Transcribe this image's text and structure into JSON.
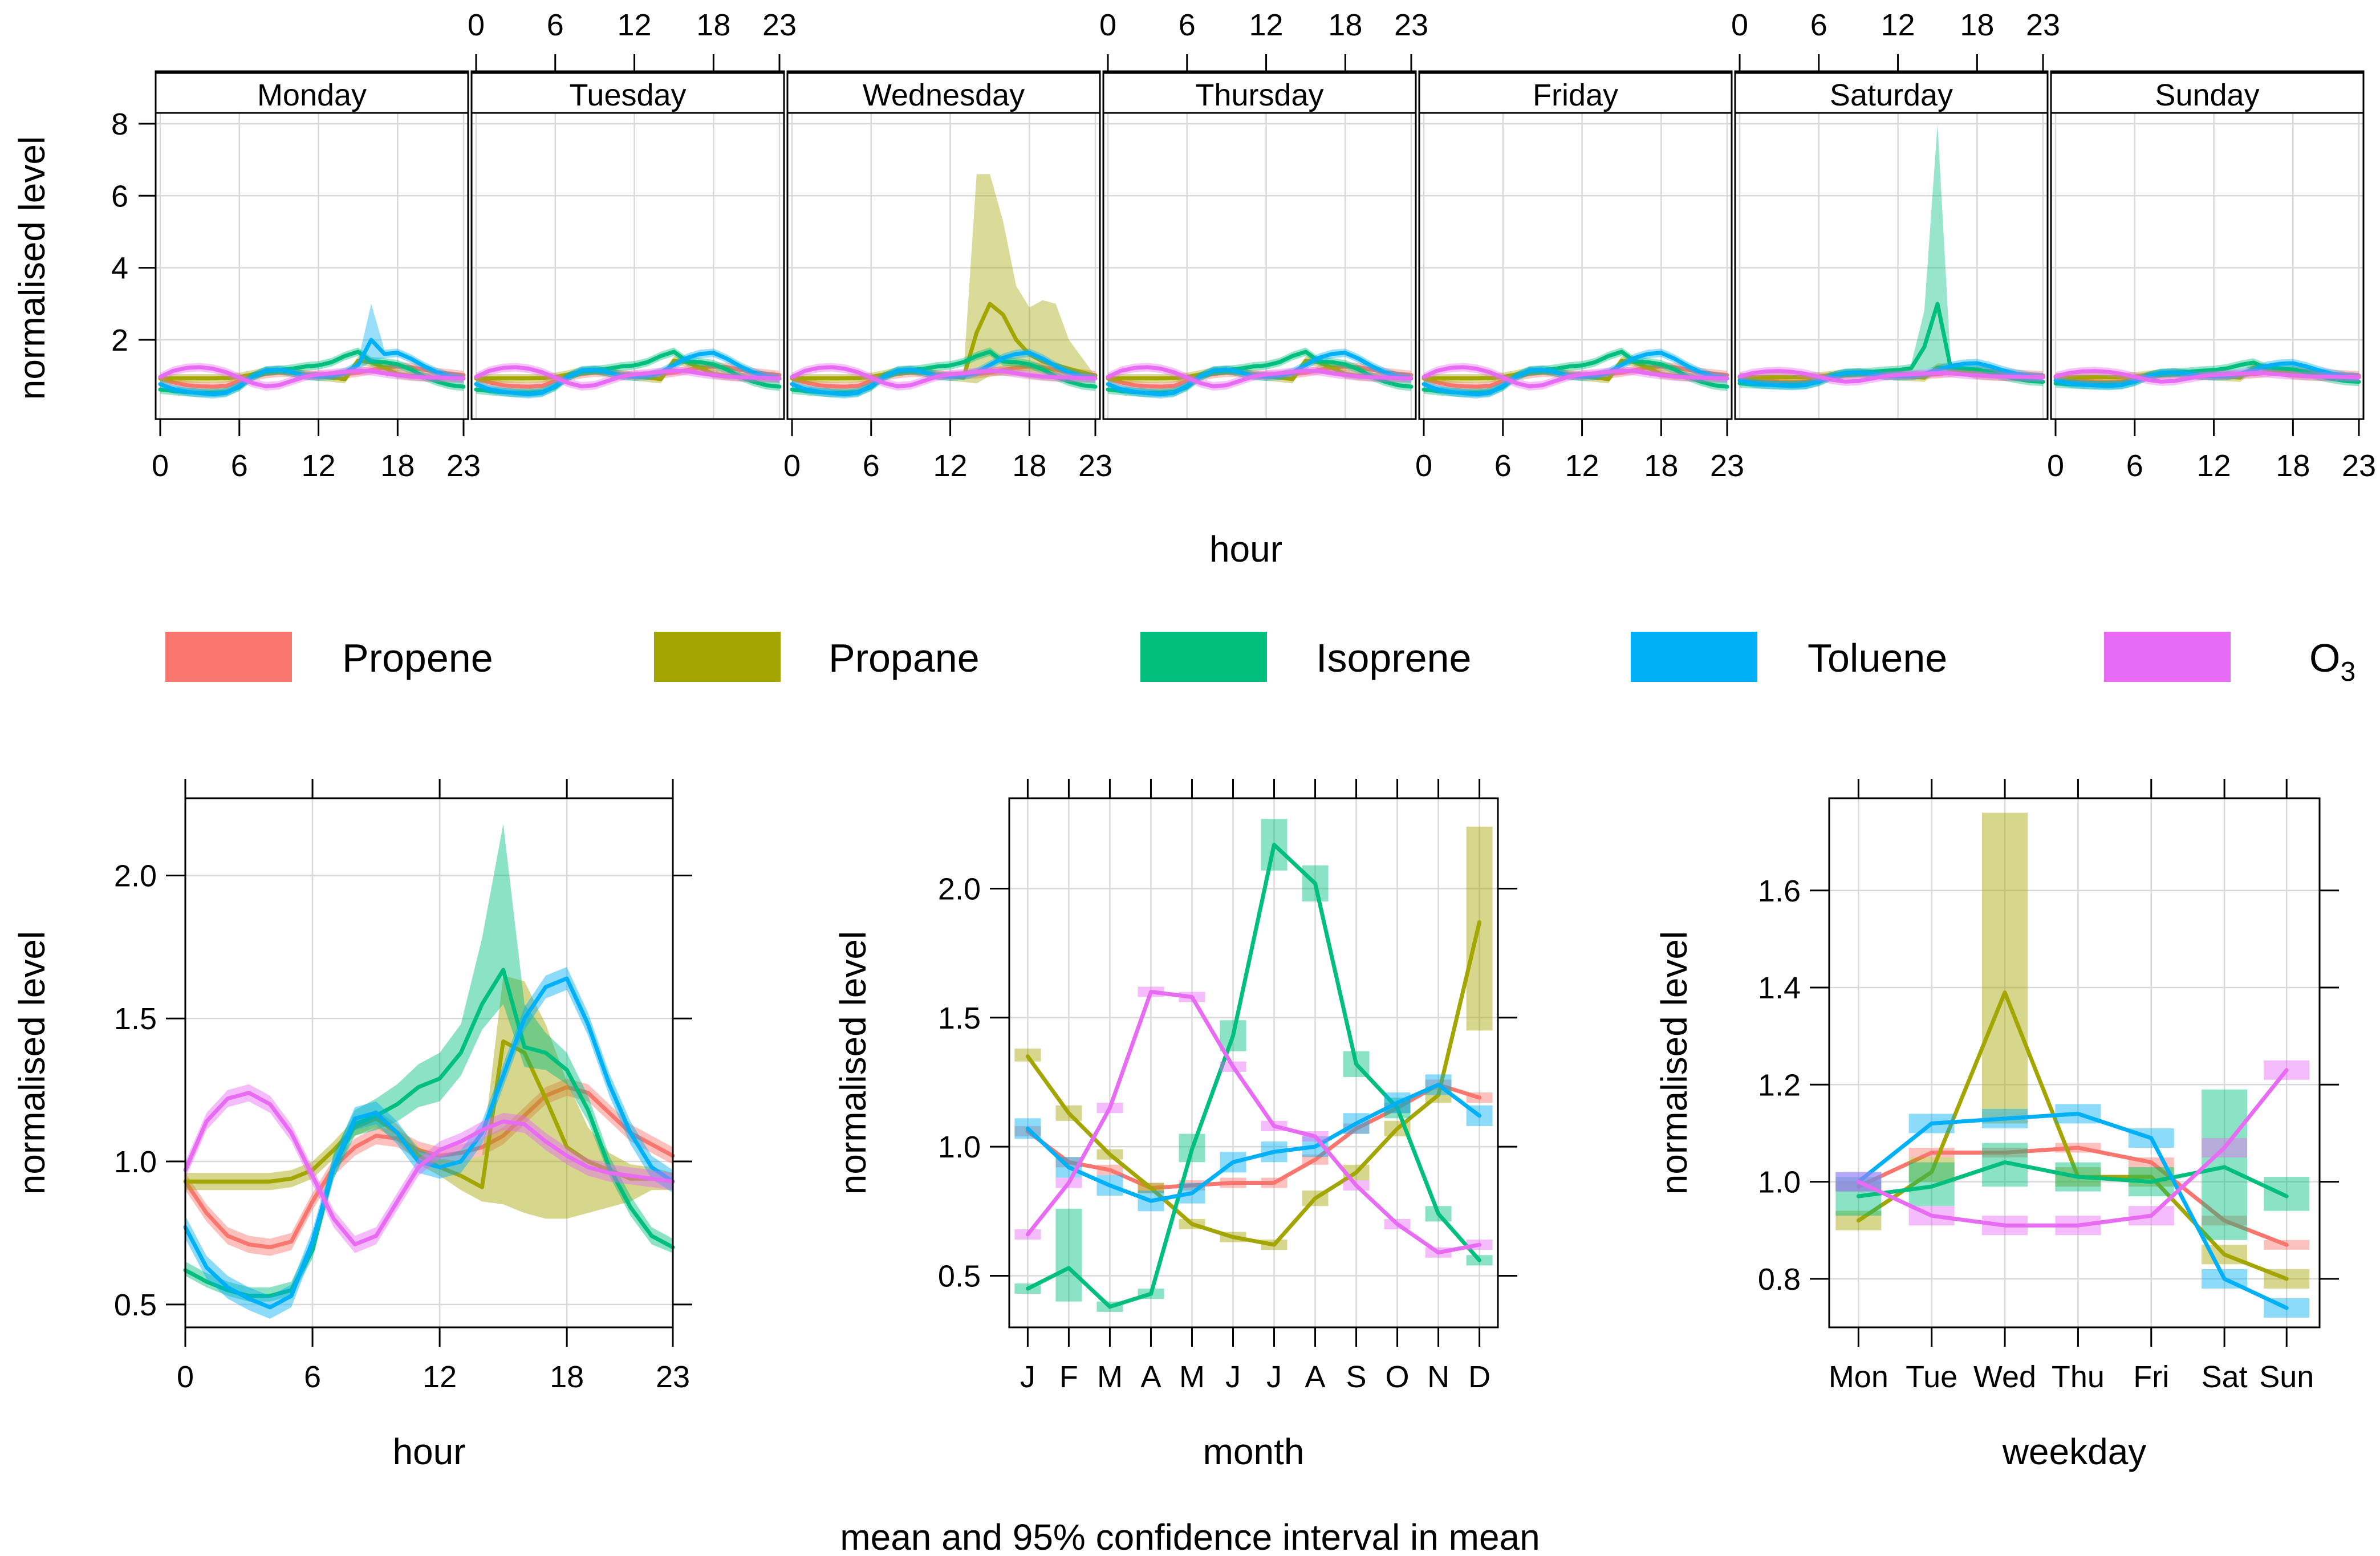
{
  "chart_data": [
    {
      "id": "weekday_hour",
      "type": "line",
      "xlabel": "hour",
      "ylabel": "normalised level",
      "xticks": [
        0,
        6,
        12,
        18,
        23
      ],
      "yticks": [
        2,
        4,
        6,
        8
      ],
      "xlim": [
        0,
        23
      ],
      "ylim": [
        -0.2,
        8.3
      ],
      "panels": [
        "Monday",
        "Tuesday",
        "Wednesday",
        "Thursday",
        "Friday",
        "Saturday",
        "Sunday"
      ],
      "spike_series": {
        "Wednesday": {
          "series": "Propane",
          "hour_range": [
            14,
            23
          ],
          "ci_upper": [
            6.6,
            6.6,
            5.3,
            3.5,
            2.9,
            3.1,
            3.0,
            2.0,
            1.5,
            1.0
          ],
          "mean": [
            2.2,
            3.0,
            2.7,
            2.0,
            1.6,
            1.4,
            1.3,
            1.2,
            1.1,
            1.0
          ]
        },
        "Saturday": {
          "series": "Isoprene",
          "peak_hour": 15,
          "ci_upper": 8.0,
          "mean": 3.0
        },
        "Monday": {
          "series": "Toluene",
          "peak_hour": 16,
          "ci_upper": 3.0,
          "mean": 2.0
        }
      }
    },
    {
      "id": "hour",
      "type": "line",
      "xlabel": "hour",
      "ylabel": "normalised level",
      "xticks": [
        0,
        6,
        12,
        18,
        23
      ],
      "yticks": [
        0.5,
        1.0,
        1.5,
        2.0
      ],
      "ytick_labels": [
        "0.5",
        "1.0",
        "1.5",
        "2.0"
      ],
      "xlim": [
        0,
        23
      ],
      "ylim": [
        0.42,
        2.27
      ],
      "x": [
        0,
        1,
        2,
        3,
        4,
        5,
        6,
        7,
        8,
        9,
        10,
        11,
        12,
        13,
        14,
        15,
        16,
        17,
        18,
        19,
        20,
        21,
        22,
        23
      ],
      "series": [
        {
          "name": "Propene",
          "values": [
            0.93,
            0.82,
            0.74,
            0.71,
            0.7,
            0.72,
            0.86,
            0.98,
            1.05,
            1.09,
            1.08,
            1.04,
            1.02,
            1.03,
            1.05,
            1.09,
            1.16,
            1.23,
            1.26,
            1.24,
            1.17,
            1.1,
            1.06,
            1.02
          ],
          "ci": 0.03
        },
        {
          "name": "Propane",
          "values": [
            0.93,
            0.93,
            0.93,
            0.93,
            0.93,
            0.94,
            0.97,
            1.04,
            1.12,
            1.15,
            1.1,
            1.02,
            0.98,
            0.95,
            0.91,
            1.42,
            1.38,
            1.22,
            1.05,
            1.0,
            0.97,
            0.94,
            0.94,
            0.93
          ],
          "ci_lower": [
            0.9,
            0.9,
            0.9,
            0.9,
            0.9,
            0.91,
            0.94,
            1.01,
            1.09,
            1.12,
            1.07,
            0.99,
            0.95,
            0.9,
            0.86,
            0.85,
            0.82,
            0.8,
            0.8,
            0.82,
            0.84,
            0.86,
            0.9,
            0.9
          ],
          "ci_upper": [
            0.96,
            0.96,
            0.96,
            0.96,
            0.96,
            0.97,
            1.0,
            1.07,
            1.15,
            1.18,
            1.13,
            1.05,
            1.01,
            1.0,
            1.02,
            1.65,
            1.63,
            1.48,
            1.28,
            1.12,
            1.03,
            0.99,
            0.98,
            0.96
          ]
        },
        {
          "name": "Isoprene",
          "values": [
            0.62,
            0.58,
            0.55,
            0.53,
            0.53,
            0.55,
            0.69,
            0.98,
            1.13,
            1.16,
            1.2,
            1.26,
            1.29,
            1.38,
            1.55,
            1.67,
            1.4,
            1.38,
            1.32,
            1.18,
            0.98,
            0.84,
            0.74,
            0.7
          ],
          "ci_lower": [
            0.6,
            0.56,
            0.53,
            0.51,
            0.51,
            0.53,
            0.66,
            0.94,
            1.09,
            1.11,
            1.14,
            1.19,
            1.21,
            1.3,
            1.46,
            1.55,
            1.33,
            1.32,
            1.27,
            1.14,
            0.95,
            0.81,
            0.71,
            0.68
          ],
          "ci_upper": [
            0.65,
            0.61,
            0.58,
            0.56,
            0.56,
            0.58,
            0.73,
            1.03,
            1.18,
            1.22,
            1.27,
            1.34,
            1.38,
            1.48,
            1.78,
            2.18,
            1.55,
            1.45,
            1.38,
            1.23,
            1.02,
            0.88,
            0.77,
            0.73
          ]
        },
        {
          "name": "Toluene",
          "values": [
            0.77,
            0.63,
            0.56,
            0.52,
            0.49,
            0.53,
            0.72,
            0.98,
            1.15,
            1.17,
            1.1,
            1.0,
            0.98,
            1.0,
            1.1,
            1.3,
            1.5,
            1.61,
            1.64,
            1.48,
            1.27,
            1.1,
            0.98,
            0.93
          ],
          "ci": 0.04
        },
        {
          "name": "O3",
          "values": [
            0.97,
            1.14,
            1.22,
            1.24,
            1.2,
            1.1,
            0.95,
            0.8,
            0.71,
            0.74,
            0.86,
            0.98,
            1.04,
            1.07,
            1.11,
            1.14,
            1.13,
            1.07,
            1.02,
            0.98,
            0.96,
            0.95,
            0.94,
            0.93
          ],
          "ci": 0.03
        }
      ]
    },
    {
      "id": "month",
      "type": "line",
      "xlabel": "month",
      "ylabel": "normalised level",
      "categories": [
        "J",
        "F",
        "M",
        "A",
        "M",
        "J",
        "J",
        "A",
        "S",
        "O",
        "N",
        "D"
      ],
      "yticks": [
        0.5,
        1.0,
        1.5,
        2.0
      ],
      "ytick_labels": [
        "0.5",
        "1.0",
        "1.5",
        "2.0"
      ],
      "ylim": [
        0.3,
        2.35
      ],
      "series": [
        {
          "name": "Propene",
          "values": [
            1.06,
            0.94,
            0.91,
            0.84,
            0.85,
            0.86,
            0.86,
            0.95,
            1.07,
            1.15,
            1.24,
            1.19
          ],
          "ci": 0.02
        },
        {
          "name": "Propane",
          "values": [
            1.35,
            1.13,
            0.97,
            0.84,
            0.7,
            0.65,
            0.62,
            0.8,
            0.9,
            1.07,
            1.2,
            1.87
          ],
          "ci_lower": [
            1.33,
            1.1,
            0.95,
            0.82,
            0.68,
            0.63,
            0.6,
            0.77,
            0.87,
            1.04,
            1.17,
            1.45
          ],
          "ci_upper": [
            1.38,
            1.16,
            0.99,
            0.86,
            0.72,
            0.67,
            0.64,
            0.83,
            0.93,
            1.1,
            1.23,
            2.24
          ]
        },
        {
          "name": "Isoprene",
          "values": [
            0.45,
            0.53,
            0.38,
            0.43,
            0.99,
            1.43,
            2.17,
            2.02,
            1.32,
            1.15,
            0.74,
            0.56
          ],
          "ci_lower": [
            0.43,
            0.4,
            0.36,
            0.41,
            0.94,
            1.37,
            2.07,
            1.95,
            1.27,
            1.11,
            0.71,
            0.54
          ],
          "ci_upper": [
            0.47,
            0.76,
            0.4,
            0.45,
            1.05,
            1.49,
            2.27,
            2.09,
            1.37,
            1.19,
            0.77,
            0.58
          ]
        },
        {
          "name": "Toluene",
          "values": [
            1.07,
            0.92,
            0.85,
            0.79,
            0.82,
            0.94,
            0.98,
            1.0,
            1.09,
            1.17,
            1.24,
            1.12
          ],
          "ci": 0.04
        },
        {
          "name": "O3",
          "values": [
            0.66,
            0.86,
            1.15,
            1.6,
            1.58,
            1.31,
            1.08,
            1.04,
            0.85,
            0.7,
            0.59,
            0.62
          ],
          "ci": 0.02
        }
      ]
    },
    {
      "id": "weekday",
      "type": "line",
      "xlabel": "weekday",
      "ylabel": "normalised level",
      "categories": [
        "Mon",
        "Tue",
        "Wed",
        "Thu",
        "Fri",
        "Sat",
        "Sun"
      ],
      "x_positions": [
        0,
        1,
        2,
        3,
        4,
        5,
        5.85
      ],
      "yticks": [
        0.8,
        1.0,
        1.2,
        1.4,
        1.6
      ],
      "ytick_labels": [
        "0.8",
        "1.0",
        "1.2",
        "1.4",
        "1.6"
      ],
      "ylim": [
        0.7,
        1.79
      ],
      "series": [
        {
          "name": "Propene",
          "values": [
            0.99,
            1.06,
            1.06,
            1.07,
            1.04,
            0.92,
            0.87
          ],
          "ci": 0.01
        },
        {
          "name": "Propane",
          "values": [
            0.92,
            1.02,
            1.39,
            1.01,
            1.01,
            0.85,
            0.8
          ],
          "ci_lower": [
            0.9,
            1.0,
            1.12,
            0.99,
            0.99,
            0.83,
            0.78
          ],
          "ci_upper": [
            0.94,
            1.05,
            1.76,
            1.03,
            1.03,
            0.87,
            0.82
          ]
        },
        {
          "name": "Isoprene",
          "values": [
            0.97,
            0.99,
            1.04,
            1.01,
            1.0,
            1.03,
            0.97
          ],
          "ci_lower": [
            0.93,
            0.95,
            0.99,
            0.98,
            0.97,
            0.88,
            0.94
          ],
          "ci_upper": [
            1.01,
            1.04,
            1.08,
            1.04,
            1.03,
            1.19,
            1.01
          ]
        },
        {
          "name": "Toluene",
          "values": [
            1.0,
            1.12,
            1.13,
            1.14,
            1.09,
            0.8,
            0.74
          ],
          "ci": 0.02
        },
        {
          "name": "O3",
          "values": [
            1.0,
            0.93,
            0.91,
            0.91,
            0.93,
            1.07,
            1.23
          ],
          "ci": 0.02
        }
      ]
    }
  ],
  "legend": [
    {
      "label": "Propene",
      "sub": "",
      "color": "#F8766D"
    },
    {
      "label": "Propane",
      "sub": "",
      "color": "#A3A500"
    },
    {
      "label": "Isoprene",
      "sub": "",
      "color": "#00BF7D"
    },
    {
      "label": "Toluene",
      "sub": "",
      "color": "#00B0F6"
    },
    {
      "label": "O",
      "sub": "3",
      "color": "#E76BF3"
    }
  ],
  "footer_caption": "mean and 95% confidence interval in mean"
}
